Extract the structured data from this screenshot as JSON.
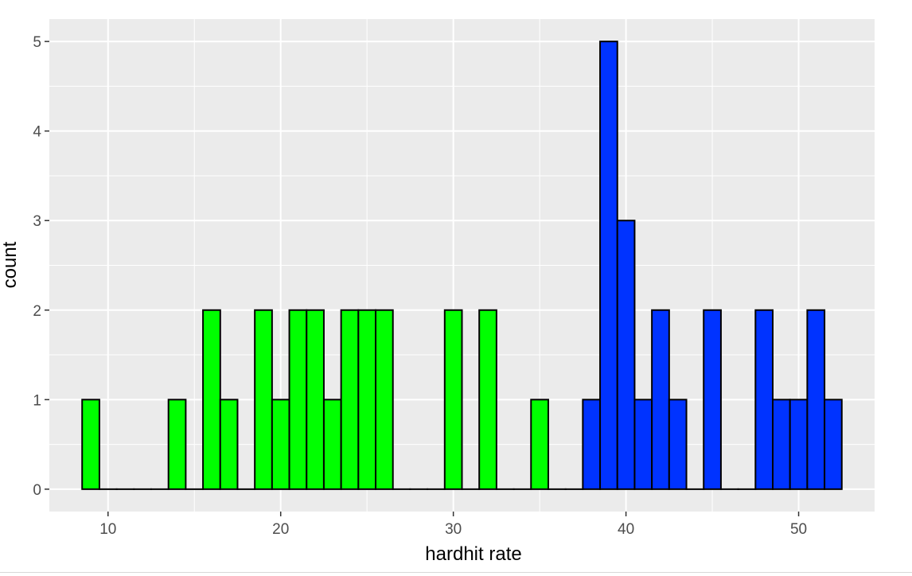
{
  "chart_data": {
    "type": "bar",
    "xlabel": "hardhit rate",
    "ylabel": "count",
    "xlim": [
      6.6,
      54.4
    ],
    "ylim": [
      -0.25,
      5.25
    ],
    "grid": true,
    "legend": "none",
    "x_ticks": [
      10,
      20,
      30,
      40,
      50
    ],
    "x_tick_labels": [
      "10",
      "20",
      "30",
      "40",
      "50"
    ],
    "y_ticks": [
      0,
      1,
      2,
      3,
      4,
      5
    ],
    "y_tick_labels": [
      "0",
      "1",
      "2",
      "3",
      "4",
      "5"
    ],
    "bin_width": 1,
    "first_bin_center": 9,
    "series": [
      {
        "color": "#00ff00",
        "bin_centers": [
          9,
          10,
          11,
          12,
          13,
          14,
          15,
          16,
          17,
          18,
          19,
          20,
          21,
          22,
          23,
          24,
          25,
          26,
          27,
          28,
          29,
          30,
          31,
          32,
          33,
          34,
          35,
          36,
          37
        ],
        "values": [
          1,
          0,
          0,
          0,
          0,
          1,
          0,
          2,
          1,
          0,
          2,
          1,
          2,
          2,
          1,
          2,
          2,
          2,
          0,
          0,
          0,
          2,
          0,
          2,
          0,
          0,
          1,
          0,
          0
        ]
      },
      {
        "color": "#0033ff",
        "bin_centers": [
          38,
          39,
          40,
          41,
          42,
          43,
          44,
          45,
          46,
          47,
          48,
          49,
          50,
          51,
          52
        ],
        "values": [
          1,
          5,
          3,
          1,
          2,
          1,
          0,
          2,
          0,
          0,
          2,
          1,
          1,
          2,
          1
        ]
      }
    ],
    "colors": {
      "panel_background": "#ebebeb",
      "grid_major": "#ffffff",
      "bar_outline": "#000000",
      "tick_label": "#4d4d4d",
      "axis_title": "#000000"
    }
  }
}
